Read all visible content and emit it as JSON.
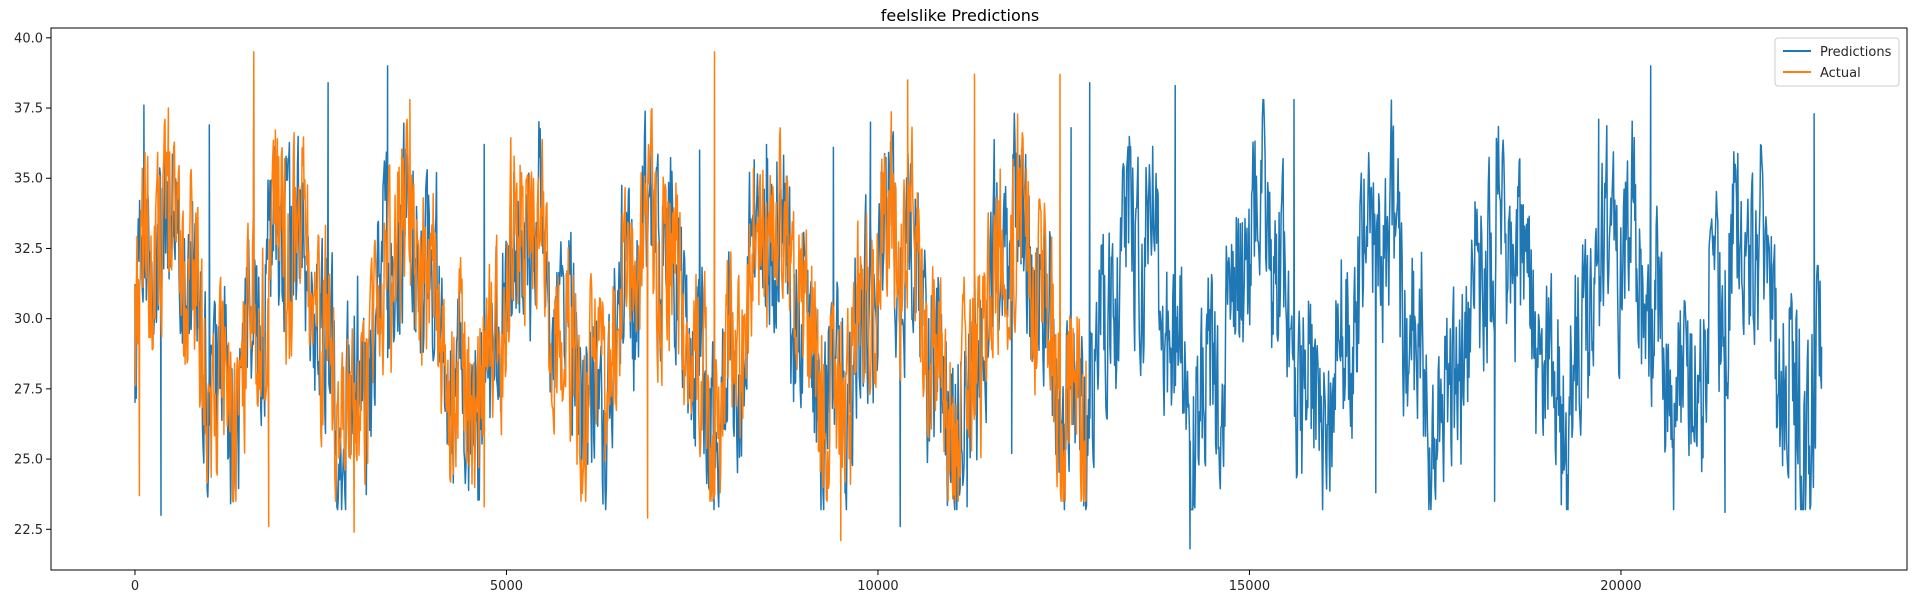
{
  "chart_data": {
    "type": "line",
    "title": "feelslike Predictions",
    "xlabel": "",
    "ylabel": "",
    "xlim": [
      -1130,
      23850
    ],
    "ylim": [
      21.05,
      40.35
    ],
    "xticks": [
      0,
      5000,
      10000,
      15000,
      20000
    ],
    "xtick_labels": [
      "0",
      "5000",
      "10000",
      "15000",
      "20000"
    ],
    "yticks": [
      22.5,
      25.0,
      27.5,
      30.0,
      32.5,
      35.0,
      37.5,
      40.0
    ],
    "ytick_labels": [
      "22.5",
      "25.0",
      "27.5",
      "30.0",
      "32.5",
      "35.0",
      "37.5",
      "40.0"
    ],
    "grid": false,
    "legend_position": "top-right",
    "series": [
      {
        "name": "Predictions",
        "color": "#1f77b4",
        "x_start": 0,
        "x_end": 22700,
        "note_range_y": [
          21.8,
          39.0
        ],
        "anchor_points": [
          [
            0,
            27.0
          ],
          [
            120,
            37.6
          ],
          [
            350,
            23.0
          ],
          [
            1000,
            36.9
          ],
          [
            1600,
            38.5
          ],
          [
            2600,
            38.4
          ],
          [
            3400,
            39.0
          ],
          [
            4700,
            36.2
          ],
          [
            5100,
            35.2
          ],
          [
            6300,
            23.4
          ],
          [
            7600,
            36.0
          ],
          [
            8500,
            36.2
          ],
          [
            9400,
            36.1
          ],
          [
            9900,
            37.0
          ],
          [
            10300,
            22.6
          ],
          [
            11200,
            23.3
          ],
          [
            11800,
            25.2
          ],
          [
            12600,
            36.8
          ],
          [
            12850,
            38.4
          ],
          [
            14000,
            38.3
          ],
          [
            14200,
            21.8
          ],
          [
            15600,
            37.8
          ],
          [
            16700,
            23.8
          ],
          [
            18300,
            23.5
          ],
          [
            19700,
            37.1
          ],
          [
            20400,
            39.0
          ],
          [
            21400,
            23.1
          ],
          [
            22350,
            23.2
          ],
          [
            22600,
            37.3
          ],
          [
            22700,
            29.0
          ]
        ]
      },
      {
        "name": "Actual",
        "color": "#ff7f0e",
        "x_start": 0,
        "x_end": 12800,
        "note_range_y": [
          22.1,
          39.5
        ],
        "anchor_points": [
          [
            0,
            30.2
          ],
          [
            60,
            23.7
          ],
          [
            450,
            37.5
          ],
          [
            1600,
            39.5
          ],
          [
            1800,
            22.6
          ],
          [
            2950,
            22.4
          ],
          [
            3700,
            37.8
          ],
          [
            4700,
            23.3
          ],
          [
            6900,
            22.9
          ],
          [
            7800,
            39.5
          ],
          [
            9500,
            22.1
          ],
          [
            10400,
            38.5
          ],
          [
            11300,
            38.7
          ],
          [
            12450,
            38.7
          ],
          [
            12800,
            28.5
          ]
        ]
      }
    ]
  }
}
